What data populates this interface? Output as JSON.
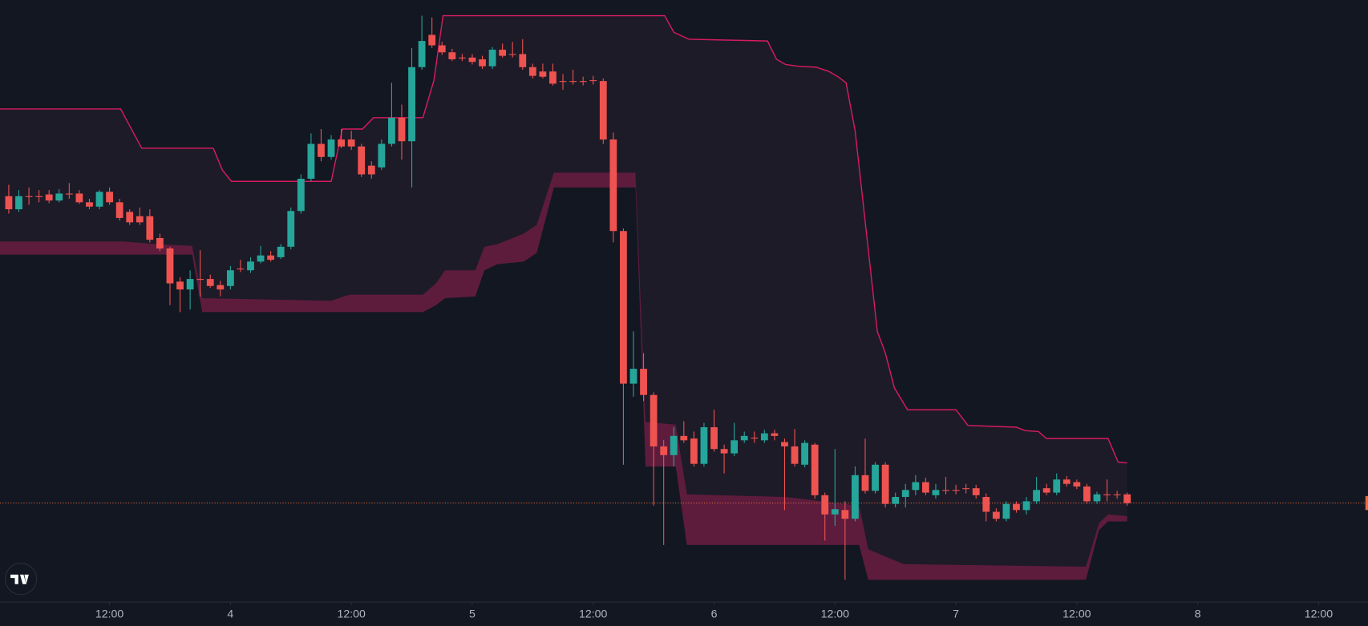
{
  "chart_data": {
    "type": "candlestick",
    "x": [
      0,
      1,
      2,
      3,
      4,
      5,
      6,
      7,
      8,
      9,
      10,
      11,
      12,
      13,
      14,
      15,
      16,
      17,
      18,
      19,
      20,
      21,
      22,
      23,
      24,
      25,
      26,
      27,
      28,
      29,
      30,
      31,
      32,
      33,
      34,
      35,
      36,
      37,
      38,
      39,
      40,
      41,
      42,
      43,
      44,
      45,
      46,
      47,
      48,
      49,
      50,
      51,
      52,
      53,
      54,
      55,
      56,
      57,
      58,
      59,
      60,
      61,
      62,
      63,
      64,
      65,
      66,
      67,
      68,
      69,
      70,
      71,
      72,
      73,
      74,
      75,
      76,
      77,
      78,
      79,
      80,
      81,
      82,
      83,
      84,
      85,
      86,
      87,
      88,
      89,
      90,
      91,
      92,
      93,
      94,
      95,
      96,
      97,
      98,
      99,
      100,
      101,
      102,
      103,
      104,
      105,
      106,
      107,
      108,
      109,
      110,
      111
    ],
    "open": [
      465,
      450,
      465,
      465,
      467,
      460,
      468,
      468,
      458,
      453,
      470,
      458,
      447,
      442,
      442,
      417,
      405,
      367,
      358,
      370,
      370,
      363,
      362,
      382,
      380,
      390,
      397,
      395,
      407,
      448,
      485,
      525,
      510,
      530,
      530,
      522,
      500,
      498,
      525,
      555,
      528,
      613,
      650,
      638,
      630,
      624,
      624,
      622,
      614,
      633,
      628,
      628,
      613,
      608,
      608,
      597,
      597,
      597,
      598,
      597,
      530,
      425,
      250,
      267,
      237,
      178,
      168,
      190,
      187,
      158,
      200,
      175,
      170,
      185,
      188,
      185,
      193,
      183,
      178,
      157,
      180,
      122,
      100,
      105,
      95,
      145,
      127,
      157,
      112,
      120,
      128,
      137,
      122,
      128,
      128,
      130,
      130,
      120,
      103,
      95,
      112,
      105,
      115,
      130,
      125,
      140,
      137,
      132,
      115,
      123,
      123,
      123
    ],
    "high": [
      478,
      472,
      475,
      472,
      472,
      473,
      480,
      472,
      462,
      472,
      475,
      462,
      450,
      452,
      450,
      422,
      407,
      372,
      380,
      403,
      375,
      368,
      385,
      392,
      395,
      408,
      402,
      410,
      452,
      490,
      537,
      542,
      535,
      542,
      540,
      525,
      505,
      530,
      595,
      570,
      635,
      672,
      670,
      642,
      634,
      628,
      628,
      626,
      636,
      640,
      642,
      645,
      617,
      617,
      617,
      605,
      610,
      602,
      603,
      600,
      538,
      428,
      310,
      285,
      240,
      185,
      200,
      207,
      195,
      205,
      220,
      180,
      205,
      195,
      195,
      197,
      197,
      187,
      198,
      185,
      182,
      125,
      175,
      115,
      155,
      187,
      160,
      160,
      125,
      135,
      145,
      142,
      135,
      143,
      134,
      135,
      134,
      124,
      107,
      115,
      115,
      120,
      143,
      135,
      147,
      144,
      140,
      135,
      126,
      140,
      127,
      125
    ],
    "low": [
      445,
      447,
      455,
      458,
      457,
      458,
      462,
      456,
      450,
      450,
      455,
      437,
      432,
      432,
      412,
      402,
      340,
      332,
      335,
      350,
      360,
      350,
      358,
      378,
      377,
      388,
      390,
      393,
      404,
      445,
      482,
      505,
      507,
      520,
      518,
      487,
      485,
      495,
      522,
      507,
      475,
      610,
      635,
      627,
      620,
      620,
      616,
      611,
      611,
      624,
      624,
      610,
      600,
      600,
      592,
      587,
      593,
      592,
      593,
      525,
      412,
      157,
      235,
      230,
      110,
      65,
      155,
      182,
      155,
      155,
      172,
      147,
      167,
      182,
      182,
      182,
      185,
      105,
      155,
      154,
      118,
      70,
      87,
      25,
      92,
      124,
      124,
      108,
      108,
      108,
      122,
      122,
      118,
      123,
      123,
      124,
      118,
      92,
      92,
      92,
      102,
      100,
      112,
      122,
      122,
      132,
      129,
      112,
      112,
      115,
      118,
      110
    ],
    "close": [
      450,
      465,
      464,
      464,
      460,
      468,
      467,
      458,
      453,
      470,
      458,
      440,
      435,
      435,
      415,
      405,
      365,
      358,
      370,
      369,
      362,
      358,
      380,
      381,
      390,
      397,
      392,
      407,
      448,
      485,
      525,
      510,
      530,
      522,
      522,
      490,
      490,
      525,
      555,
      528,
      613,
      643,
      638,
      630,
      622,
      623,
      619,
      614,
      633,
      626,
      627,
      613,
      603,
      602,
      594,
      596,
      596,
      596,
      597,
      530,
      425,
      250,
      267,
      237,
      178,
      168,
      190,
      185,
      158,
      200,
      175,
      170,
      185,
      190,
      187,
      193,
      190,
      178,
      158,
      182,
      122,
      100,
      106,
      95,
      145,
      127,
      157,
      112,
      120,
      128,
      137,
      125,
      128,
      127,
      127,
      129,
      122,
      103,
      95,
      112,
      105,
      115,
      128,
      125,
      140,
      135,
      132,
      115,
      123,
      122,
      122,
      113
    ],
    "up_color": "#26a69a",
    "down_color": "#ef5350",
    "xlim": [
      -0.87,
      134.9
    ],
    "ylim": [
      0,
      690
    ],
    "xticks": [
      {
        "value": 10,
        "label": "12:00"
      },
      {
        "value": 22,
        "label": "4"
      },
      {
        "value": 34,
        "label": "12:00"
      },
      {
        "value": 46,
        "label": "5"
      },
      {
        "value": 58,
        "label": "12:00"
      },
      {
        "value": 70,
        "label": "6"
      },
      {
        "value": 82,
        "label": "12:00"
      },
      {
        "value": 94,
        "label": "7"
      },
      {
        "value": 106,
        "label": "12:00"
      },
      {
        "value": 118,
        "label": "8"
      },
      {
        "value": 130,
        "label": "12:00"
      }
    ],
    "upper_line": {
      "color": "#d81b60",
      "x": [
        -0.87,
        11.1,
        13.2,
        20.3,
        21.2,
        22.1,
        32.0,
        33.1,
        35.1,
        36.2,
        41.1,
        42.2,
        43.1,
        65.1,
        66.0,
        67.5,
        75.3,
        76.2,
        77.1,
        78.4,
        80.1,
        81.4,
        82.3,
        83.1,
        84.0,
        86.2,
        87.0,
        87.9,
        89.2,
        94.0,
        95.2,
        100.0,
        100.9,
        102.2,
        103.0,
        109.1,
        110.1,
        111
      ],
      "values": [
        565,
        565,
        520,
        520,
        495,
        482,
        482,
        542,
        542,
        555,
        555,
        598,
        672,
        672,
        653,
        645,
        643,
        622,
        616,
        614,
        613,
        608,
        602,
        595,
        540,
        310,
        285,
        245,
        220,
        220,
        202,
        200,
        196,
        195,
        187,
        187,
        160,
        159
      ]
    },
    "band": {
      "color": "#5e1c3d",
      "x": [
        -0.87,
        11.3,
        14.7,
        18.2,
        19.2,
        32.0,
        33.8,
        41.1,
        42.4,
        43.3,
        46.3,
        47.2,
        48.5,
        51.1,
        52.4,
        54.1,
        62.2,
        63.2,
        66.2,
        67.3,
        77.1,
        84.4,
        85.3,
        88.8,
        106.9,
        108.2,
        109.1,
        111
      ],
      "upper": [
        413,
        413,
        410,
        408,
        348,
        345,
        352,
        352,
        365,
        380,
        380,
        407,
        410,
        422,
        432,
        492,
        492,
        206,
        203,
        123,
        120,
        110,
        60,
        43,
        40,
        90,
        100,
        98
      ],
      "lower": [
        398,
        398,
        398,
        398,
        332,
        332,
        332,
        332,
        340,
        348,
        350,
        380,
        387,
        390,
        400,
        475,
        475,
        155,
        155,
        65,
        65,
        65,
        25,
        25,
        25,
        82,
        92,
        92
      ]
    },
    "area_color": "#1d1b28",
    "last_price": {
      "value": 113,
      "color": "#ef6c3a"
    }
  }
}
